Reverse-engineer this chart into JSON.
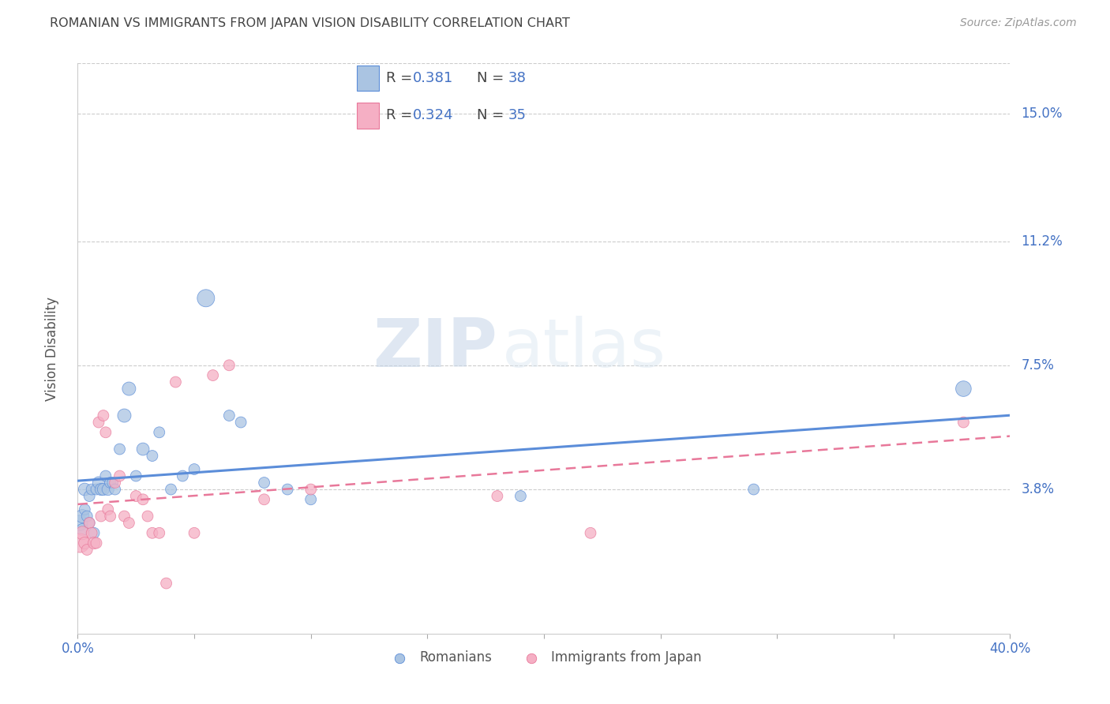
{
  "title": "ROMANIAN VS IMMIGRANTS FROM JAPAN VISION DISABILITY CORRELATION CHART",
  "source": "Source: ZipAtlas.com",
  "ylabel": "Vision Disability",
  "ytick_labels": [
    "15.0%",
    "11.2%",
    "7.5%",
    "3.8%"
  ],
  "ytick_values": [
    0.15,
    0.112,
    0.075,
    0.038
  ],
  "xlim": [
    0.0,
    0.4
  ],
  "ylim": [
    -0.005,
    0.165
  ],
  "romanian_color": "#aac4e2",
  "japan_color": "#f5afc4",
  "romanian_line_color": "#5b8dd9",
  "japan_line_color": "#e8789a",
  "text_color": "#4472c4",
  "background_color": "#ffffff",
  "romanians_x": [
    0.001,
    0.002,
    0.002,
    0.003,
    0.003,
    0.004,
    0.005,
    0.005,
    0.006,
    0.007,
    0.008,
    0.009,
    0.01,
    0.011,
    0.012,
    0.013,
    0.014,
    0.015,
    0.016,
    0.018,
    0.02,
    0.022,
    0.025,
    0.028,
    0.032,
    0.035,
    0.04,
    0.045,
    0.05,
    0.055,
    0.065,
    0.07,
    0.08,
    0.09,
    0.1,
    0.19,
    0.29,
    0.38
  ],
  "romanians_y": [
    0.028,
    0.03,
    0.026,
    0.032,
    0.038,
    0.03,
    0.028,
    0.036,
    0.038,
    0.025,
    0.038,
    0.04,
    0.038,
    0.038,
    0.042,
    0.038,
    0.04,
    0.04,
    0.038,
    0.05,
    0.06,
    0.068,
    0.042,
    0.05,
    0.048,
    0.055,
    0.038,
    0.042,
    0.044,
    0.095,
    0.06,
    0.058,
    0.04,
    0.038,
    0.035,
    0.036,
    0.038,
    0.068
  ],
  "romanians_size": [
    200,
    150,
    120,
    100,
    130,
    100,
    100,
    100,
    100,
    100,
    100,
    120,
    120,
    120,
    100,
    120,
    100,
    100,
    100,
    100,
    150,
    150,
    100,
    130,
    100,
    100,
    100,
    100,
    100,
    250,
    100,
    100,
    100,
    100,
    100,
    100,
    100,
    200
  ],
  "japan_x": [
    0.001,
    0.002,
    0.003,
    0.004,
    0.005,
    0.006,
    0.007,
    0.008,
    0.009,
    0.01,
    0.011,
    0.012,
    0.013,
    0.014,
    0.016,
    0.018,
    0.02,
    0.022,
    0.025,
    0.028,
    0.03,
    0.032,
    0.035,
    0.038,
    0.042,
    0.05,
    0.058,
    0.065,
    0.08,
    0.1,
    0.18,
    0.22,
    0.38
  ],
  "japan_y": [
    0.022,
    0.025,
    0.022,
    0.02,
    0.028,
    0.025,
    0.022,
    0.022,
    0.058,
    0.03,
    0.06,
    0.055,
    0.032,
    0.03,
    0.04,
    0.042,
    0.03,
    0.028,
    0.036,
    0.035,
    0.03,
    0.025,
    0.025,
    0.01,
    0.07,
    0.025,
    0.072,
    0.075,
    0.035,
    0.038,
    0.036,
    0.025,
    0.058
  ],
  "japan_size": [
    300,
    150,
    120,
    100,
    100,
    100,
    120,
    100,
    100,
    100,
    100,
    100,
    100,
    100,
    100,
    100,
    100,
    100,
    100,
    100,
    100,
    100,
    100,
    100,
    100,
    100,
    100,
    100,
    100,
    100,
    100,
    100,
    100
  ],
  "rom_trend": [
    0.034,
    0.068
  ],
  "jap_trend_start_x": 0.08,
  "jap_trend_end_x": 0.38,
  "jap_trend_start_y": 0.04,
  "jap_trend_end_y": 0.07,
  "watermark_zip": "ZIP",
  "watermark_atlas": "atlas"
}
